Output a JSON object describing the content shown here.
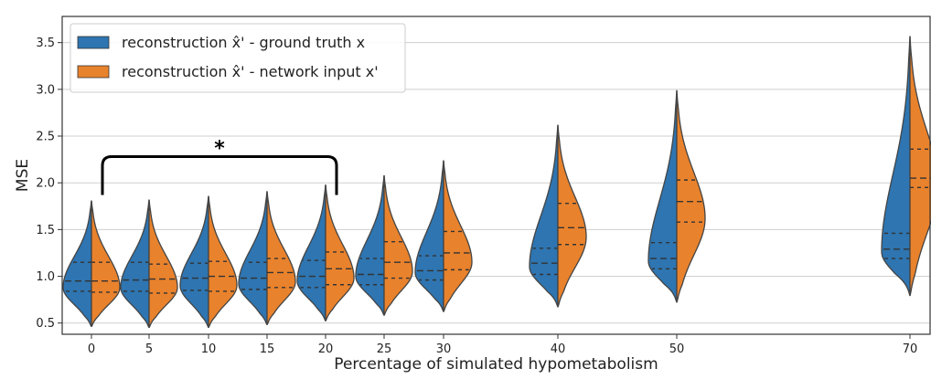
{
  "chart_data": {
    "type": "violin",
    "xlabel": "Percentage of simulated hypometabolism",
    "ylabel": "MSE",
    "ylim": [
      0.38,
      3.78
    ],
    "yticks": [
      "0.5",
      "1.0",
      "1.5",
      "2.0",
      "2.5",
      "3.0",
      "3.5"
    ],
    "categories": [
      "0",
      "5",
      "10",
      "15",
      "20",
      "25",
      "30",
      "40",
      "50",
      "70"
    ],
    "grid": "horizontal",
    "legend_position": "top-left",
    "colors": {
      "ground_truth": "#2e75b1",
      "network_input": "#e9822c"
    },
    "series": [
      {
        "name": "reconstruction x̂' - ground truth x",
        "color": "#2e75b1",
        "side": "left",
        "violins": [
          {
            "min": 0.46,
            "max": 1.81,
            "q1": 0.84,
            "median": 0.95,
            "q3": 1.15,
            "mode": 0.88
          },
          {
            "min": 0.45,
            "max": 1.82,
            "q1": 0.84,
            "median": 0.96,
            "q3": 1.15,
            "mode": 0.88
          },
          {
            "min": 0.45,
            "max": 1.86,
            "q1": 0.85,
            "median": 0.98,
            "q3": 1.14,
            "mode": 0.9
          },
          {
            "min": 0.48,
            "max": 1.91,
            "q1": 0.86,
            "median": 0.98,
            "q3": 1.15,
            "mode": 0.92
          },
          {
            "min": 0.52,
            "max": 1.98,
            "q1": 0.88,
            "median": 1.0,
            "q3": 1.17,
            "mode": 0.95
          },
          {
            "min": 0.58,
            "max": 2.08,
            "q1": 0.91,
            "median": 1.02,
            "q3": 1.19,
            "mode": 1.0
          },
          {
            "min": 0.62,
            "max": 2.24,
            "q1": 0.96,
            "median": 1.06,
            "q3": 1.22,
            "mode": 1.04
          },
          {
            "min": 0.67,
            "max": 2.62,
            "q1": 1.02,
            "median": 1.14,
            "q3": 1.3,
            "mode": 1.1
          },
          {
            "min": 0.72,
            "max": 2.99,
            "q1": 1.08,
            "median": 1.19,
            "q3": 1.36,
            "mode": 1.16
          },
          {
            "min": 0.79,
            "max": 3.57,
            "q1": 1.19,
            "median": 1.29,
            "q3": 1.46,
            "mode": 1.26
          }
        ]
      },
      {
        "name": "reconstruction x̂' - network input x'",
        "color": "#e9822c",
        "side": "right",
        "violins": [
          {
            "min": 0.46,
            "max": 1.81,
            "q1": 0.83,
            "median": 0.95,
            "q3": 1.15,
            "mode": 0.88
          },
          {
            "min": 0.45,
            "max": 1.82,
            "q1": 0.82,
            "median": 0.97,
            "q3": 1.13,
            "mode": 0.88
          },
          {
            "min": 0.45,
            "max": 1.86,
            "q1": 0.84,
            "median": 1.0,
            "q3": 1.16,
            "mode": 0.9
          },
          {
            "min": 0.48,
            "max": 1.91,
            "q1": 0.88,
            "median": 1.04,
            "q3": 1.19,
            "mode": 0.94
          },
          {
            "min": 0.52,
            "max": 1.98,
            "q1": 0.91,
            "median": 1.08,
            "q3": 1.26,
            "mode": 0.98
          },
          {
            "min": 0.58,
            "max": 2.08,
            "q1": 0.98,
            "median": 1.15,
            "q3": 1.37,
            "mode": 1.05
          },
          {
            "min": 0.62,
            "max": 2.24,
            "q1": 1.07,
            "median": 1.25,
            "q3": 1.48,
            "mode": 1.15
          },
          {
            "min": 0.67,
            "max": 2.62,
            "q1": 1.34,
            "median": 1.52,
            "q3": 1.78,
            "mode": 1.42
          },
          {
            "min": 0.72,
            "max": 2.99,
            "q1": 1.58,
            "median": 1.8,
            "q3": 2.03,
            "mode": 1.62
          },
          {
            "min": 0.79,
            "max": 3.57,
            "q1": 1.95,
            "median": 2.05,
            "q3": 2.36,
            "mode": 1.98
          }
        ]
      }
    ],
    "annotation": {
      "text": "*",
      "bracket_from": "0",
      "bracket_to": "20",
      "value": 2.28
    }
  }
}
